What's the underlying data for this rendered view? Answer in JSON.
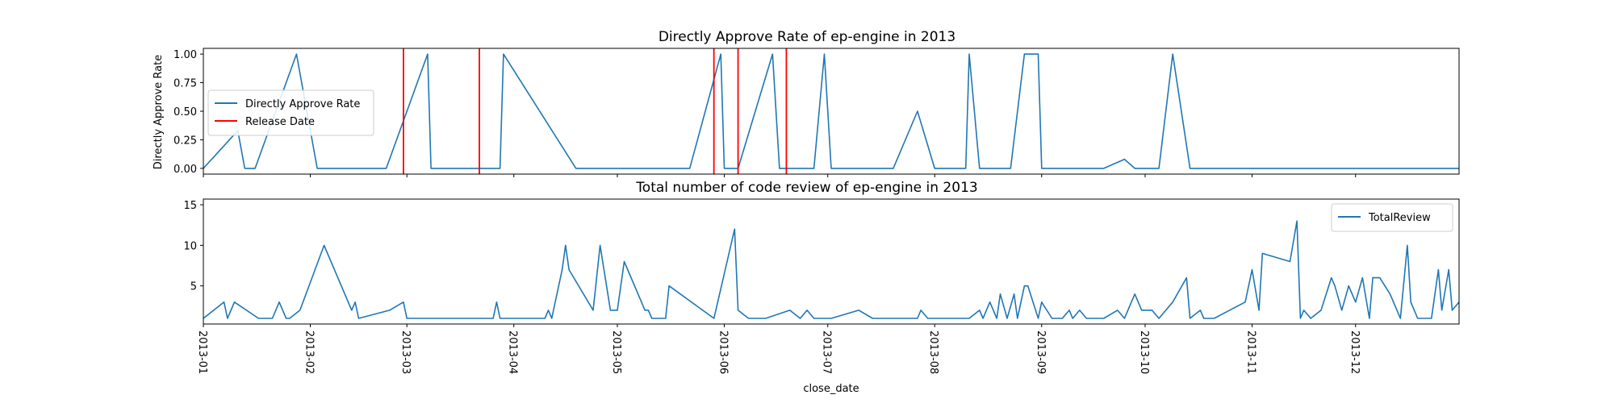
{
  "chart_data": [
    {
      "type": "line",
      "title": "Directly Approve Rate of ep-engine in 2013",
      "xlabel": "",
      "ylabel": "Directly Approve Rate",
      "xlim": [
        "2013-01-01",
        "2013-12-31"
      ],
      "ylim": [
        -0.05,
        1.05
      ],
      "yticks": [
        "0.00",
        "0.25",
        "0.50",
        "0.75",
        "1.00"
      ],
      "legend_position": "center-left",
      "grid": false,
      "series": [
        {
          "name": "Directly Approve Rate",
          "color": "#1f77b4",
          "points": [
            [
              "2013-01-01",
              0
            ],
            [
              "2013-01-11",
              0.33
            ],
            [
              "2013-01-13",
              0
            ],
            [
              "2013-01-16",
              0
            ],
            [
              "2013-01-28",
              1
            ],
            [
              "2013-02-03",
              0
            ],
            [
              "2013-02-23",
              0
            ],
            [
              "2013-03-07",
              1
            ],
            [
              "2013-03-08",
              0
            ],
            [
              "2013-03-28",
              0
            ],
            [
              "2013-03-29",
              1
            ],
            [
              "2013-04-19",
              0
            ],
            [
              "2013-05-04",
              0
            ],
            [
              "2013-05-05",
              0
            ],
            [
              "2013-05-22",
              0
            ],
            [
              "2013-05-31",
              1
            ],
            [
              "2013-06-01",
              0
            ],
            [
              "2013-06-05",
              0
            ],
            [
              "2013-06-15",
              1
            ],
            [
              "2013-06-17",
              0
            ],
            [
              "2013-06-27",
              0
            ],
            [
              "2013-06-30",
              1
            ],
            [
              "2013-07-02",
              0
            ],
            [
              "2013-07-20",
              0
            ],
            [
              "2013-07-27",
              0.5
            ],
            [
              "2013-08-01",
              0
            ],
            [
              "2013-08-05",
              0
            ],
            [
              "2013-08-06",
              0
            ],
            [
              "2013-08-10",
              0
            ],
            [
              "2013-08-11",
              1
            ],
            [
              "2013-08-14",
              0
            ],
            [
              "2013-08-20",
              0
            ],
            [
              "2013-08-23",
              0
            ],
            [
              "2013-08-27",
              1
            ],
            [
              "2013-08-31",
              1
            ],
            [
              "2013-09-01",
              0
            ],
            [
              "2013-09-19",
              0
            ],
            [
              "2013-09-25",
              0.08
            ],
            [
              "2013-09-28",
              0
            ],
            [
              "2013-10-01",
              0
            ],
            [
              "2013-10-05",
              0
            ],
            [
              "2013-10-09",
              1
            ],
            [
              "2013-10-14",
              0
            ],
            [
              "2013-10-20",
              0
            ],
            [
              "2013-10-22",
              0
            ],
            [
              "2013-10-26",
              0
            ],
            [
              "2013-11-01",
              0
            ],
            [
              "2013-11-05",
              0
            ],
            [
              "2013-11-07",
              0
            ],
            [
              "2013-11-14",
              0
            ],
            [
              "2013-11-20",
              0
            ],
            [
              "2013-11-21",
              0
            ],
            [
              "2013-11-22",
              0
            ],
            [
              "2013-11-28",
              0
            ],
            [
              "2013-12-01",
              0
            ],
            [
              "2013-12-04",
              0
            ],
            [
              "2013-12-07",
              0
            ],
            [
              "2013-12-11",
              0
            ],
            [
              "2013-12-18",
              0
            ],
            [
              "2013-12-21",
              0
            ],
            [
              "2013-12-24",
              0
            ],
            [
              "2013-12-31",
              0
            ]
          ]
        },
        {
          "name": "Release Date",
          "color": "#ff0000",
          "vlines": [
            "2013-02-28",
            "2013-03-22",
            "2013-05-29",
            "2013-06-05",
            "2013-06-19"
          ]
        }
      ]
    },
    {
      "type": "line",
      "title": "Total number of code review of ep-engine in 2013",
      "xlabel": "close_date",
      "ylabel": "",
      "xlim": [
        "2013-01-01",
        "2013-12-31"
      ],
      "ylim": [
        0.3,
        15.7
      ],
      "yticks": [
        "5",
        "10",
        "15"
      ],
      "xticks": [
        "2013-01",
        "2013-02",
        "2013-03",
        "2013-04",
        "2013-05",
        "2013-06",
        "2013-07",
        "2013-08",
        "2013-09",
        "2013-10",
        "2013-11",
        "2013-12"
      ],
      "legend_position": "top-right",
      "grid": false,
      "series": [
        {
          "name": "TotalReview",
          "color": "#1f77b4",
          "points": [
            [
              "2013-01-01",
              1
            ],
            [
              "2013-01-07",
              3
            ],
            [
              "2013-01-08",
              1
            ],
            [
              "2013-01-10",
              3
            ],
            [
              "2013-01-17",
              1
            ],
            [
              "2013-01-21",
              1
            ],
            [
              "2013-01-23",
              3
            ],
            [
              "2013-01-25",
              1
            ],
            [
              "2013-01-26",
              1
            ],
            [
              "2013-01-29",
              2
            ],
            [
              "2013-02-05",
              10
            ],
            [
              "2013-02-13",
              2
            ],
            [
              "2013-02-14",
              3
            ],
            [
              "2013-02-15",
              1
            ],
            [
              "2013-02-24",
              2
            ],
            [
              "2013-02-28",
              3
            ],
            [
              "2013-03-01",
              1
            ],
            [
              "2013-03-26",
              1
            ],
            [
              "2013-03-27",
              3
            ],
            [
              "2013-03-28",
              1
            ],
            [
              "2013-04-10",
              1
            ],
            [
              "2013-04-11",
              2
            ],
            [
              "2013-04-12",
              1
            ],
            [
              "2013-04-15",
              7
            ],
            [
              "2013-04-16",
              10
            ],
            [
              "2013-04-17",
              7
            ],
            [
              "2013-04-24",
              2
            ],
            [
              "2013-04-26",
              10
            ],
            [
              "2013-04-29",
              2
            ],
            [
              "2013-05-01",
              2
            ],
            [
              "2013-05-03",
              8
            ],
            [
              "2013-05-09",
              2
            ],
            [
              "2013-05-10",
              2
            ],
            [
              "2013-05-11",
              1
            ],
            [
              "2013-05-14",
              1
            ],
            [
              "2013-05-15",
              1
            ],
            [
              "2013-05-16",
              5
            ],
            [
              "2013-05-29",
              1
            ],
            [
              "2013-06-04",
              12
            ],
            [
              "2013-06-05",
              2
            ],
            [
              "2013-06-08",
              1
            ],
            [
              "2013-06-13",
              1
            ],
            [
              "2013-06-20",
              2
            ],
            [
              "2013-06-23",
              1
            ],
            [
              "2013-06-25",
              2
            ],
            [
              "2013-06-27",
              1
            ],
            [
              "2013-07-02",
              1
            ],
            [
              "2013-07-10",
              2
            ],
            [
              "2013-07-14",
              1
            ],
            [
              "2013-07-20",
              1
            ],
            [
              "2013-07-27",
              1
            ],
            [
              "2013-07-28",
              2
            ],
            [
              "2013-07-30",
              1
            ],
            [
              "2013-08-04",
              1
            ],
            [
              "2013-08-11",
              1
            ],
            [
              "2013-08-14",
              2
            ],
            [
              "2013-08-15",
              1
            ],
            [
              "2013-08-17",
              3
            ],
            [
              "2013-08-19",
              1
            ],
            [
              "2013-08-20",
              4
            ],
            [
              "2013-08-22",
              1
            ],
            [
              "2013-08-24",
              4
            ],
            [
              "2013-08-25",
              1
            ],
            [
              "2013-08-27",
              5
            ],
            [
              "2013-08-28",
              5
            ],
            [
              "2013-08-31",
              1
            ],
            [
              "2013-09-01",
              3
            ],
            [
              "2013-09-04",
              1
            ],
            [
              "2013-09-07",
              1
            ],
            [
              "2013-09-09",
              2
            ],
            [
              "2013-09-10",
              1
            ],
            [
              "2013-09-12",
              2
            ],
            [
              "2013-09-14",
              1
            ],
            [
              "2013-09-19",
              1
            ],
            [
              "2013-09-23",
              2
            ],
            [
              "2013-09-25",
              1
            ],
            [
              "2013-09-28",
              4
            ],
            [
              "2013-09-30",
              2
            ],
            [
              "2013-10-03",
              2
            ],
            [
              "2013-10-05",
              1
            ],
            [
              "2013-10-09",
              3
            ],
            [
              "2013-10-13",
              6
            ],
            [
              "2013-10-14",
              1
            ],
            [
              "2013-10-17",
              2
            ],
            [
              "2013-10-18",
              1
            ],
            [
              "2013-10-21",
              1
            ],
            [
              "2013-10-30",
              3
            ],
            [
              "2013-11-01",
              7
            ],
            [
              "2013-11-03",
              2
            ],
            [
              "2013-11-04",
              9
            ],
            [
              "2013-11-12",
              8
            ],
            [
              "2013-11-14",
              13
            ],
            [
              "2013-11-15",
              1
            ],
            [
              "2013-11-16",
              2
            ],
            [
              "2013-11-18",
              1
            ],
            [
              "2013-11-21",
              2
            ],
            [
              "2013-11-24",
              6
            ],
            [
              "2013-11-25",
              5
            ],
            [
              "2013-11-27",
              2
            ],
            [
              "2013-11-29",
              5
            ],
            [
              "2013-12-01",
              3
            ],
            [
              "2013-12-03",
              6
            ],
            [
              "2013-12-05",
              1
            ],
            [
              "2013-12-06",
              6
            ],
            [
              "2013-12-08",
              6
            ],
            [
              "2013-12-11",
              4
            ],
            [
              "2013-12-14",
              1
            ],
            [
              "2013-12-16",
              10
            ],
            [
              "2013-12-17",
              3
            ],
            [
              "2013-12-19",
              1
            ],
            [
              "2013-12-21",
              1
            ],
            [
              "2013-12-23",
              1
            ],
            [
              "2013-12-25",
              7
            ],
            [
              "2013-12-26",
              2
            ],
            [
              "2013-12-28",
              7
            ],
            [
              "2013-12-29",
              2
            ],
            [
              "2013-12-31",
              3
            ]
          ]
        }
      ]
    }
  ]
}
